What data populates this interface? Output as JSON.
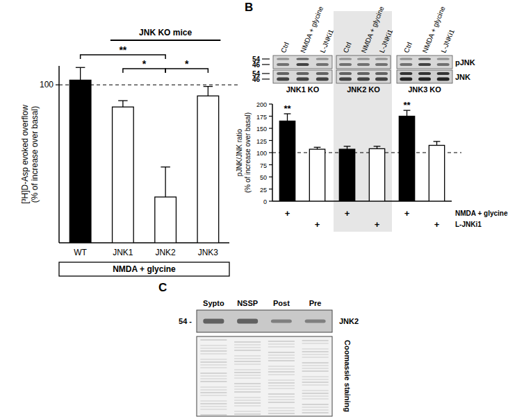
{
  "chart_data": [
    {
      "type": "bar",
      "y_label": [
        "[³H]D-Asp evoked overflow",
        "(% of increase over basal)"
      ],
      "categories": [
        "WT",
        "JNK1",
        "JNK2",
        "JNK3"
      ],
      "values": [
        103,
        86,
        29,
        93
      ],
      "errors": [
        8,
        4,
        19,
        6
      ],
      "colors": [
        "#000000",
        "#ffffff",
        "#ffffff",
        "#ffffff"
      ],
      "ylim": [
        0,
        112
      ],
      "yticks": [
        100
      ],
      "reference_line": 100,
      "group_label": "JNK KO mice",
      "treatment": "NMDA + glycine",
      "annotations": [
        {
          "text": "**",
          "from": "WT",
          "to": "JNK2"
        },
        {
          "text": "*",
          "from": "JNK1",
          "to": "JNK2"
        },
        {
          "text": "*",
          "from": "JNK2",
          "to": "JNK3"
        }
      ]
    },
    {
      "type": "bar",
      "y_label": [
        "pJNK/JNK ratio",
        "(% of increase over basal)"
      ],
      "categories": [
        null,
        null,
        null,
        null,
        null,
        null
      ],
      "values": [
        165,
        107,
        107,
        108,
        175,
        115
      ],
      "errors": [
        15,
        4,
        6,
        5,
        12,
        8
      ],
      "colors": [
        "#000000",
        "#ffffff",
        "#000000",
        "#ffffff",
        "#000000",
        "#ffffff"
      ],
      "ylim": [
        0,
        200
      ],
      "yticks": [
        0,
        25,
        50,
        75,
        100,
        125,
        150,
        175,
        200
      ],
      "reference_line": 100,
      "annotations": [
        {
          "text": "**",
          "index": 0
        },
        {
          "text": "**",
          "index": 4
        }
      ],
      "x_rows": [
        {
          "label": "NMDA + glycine",
          "values": [
            "+",
            null,
            "+",
            null,
            "+",
            null
          ]
        },
        {
          "label": "L-JNKi1",
          "values": [
            null,
            "+",
            null,
            "+",
            null,
            "+"
          ]
        }
      ]
    }
  ],
  "panel_labels": [
    "B",
    "C"
  ],
  "blot_b": {
    "lanes": [
      "Ctrl",
      "NMDA + glycine",
      "L-JNKi1"
    ],
    "genotypes": [
      "JNK1 KO",
      "JNK2 KO",
      "JNK3 KO"
    ],
    "markers": [
      54,
      46,
      54,
      46
    ],
    "bands": [
      "pJNK",
      "JNK"
    ]
  },
  "blot_c": {
    "lanes": [
      "Sypto",
      "NSSP",
      "Post",
      "Pre"
    ],
    "marker": 54,
    "marker_label": "54 -",
    "band": "JNK2",
    "stain": "Coomassie staining"
  }
}
